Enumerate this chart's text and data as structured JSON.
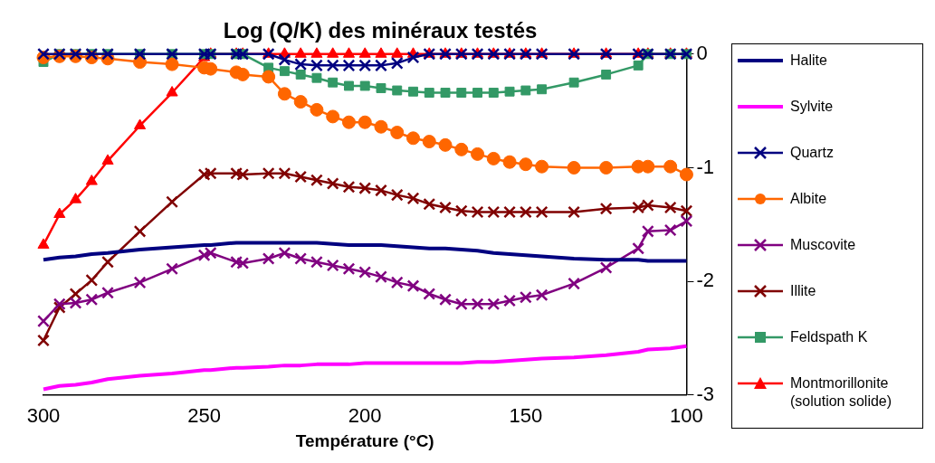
{
  "chart_data": {
    "type": "line",
    "title": "Log (Q/K) des minéraux testés",
    "xlabel": "Température (°C)",
    "x": [
      300,
      295,
      290,
      285,
      280,
      270,
      260,
      250,
      248,
      240,
      238,
      230,
      225,
      220,
      215,
      210,
      205,
      200,
      195,
      190,
      185,
      180,
      175,
      170,
      165,
      160,
      155,
      150,
      145,
      135,
      125,
      115,
      112,
      105,
      100
    ],
    "xlim": [
      300,
      100
    ],
    "xticks": [
      300,
      250,
      200,
      150,
      100
    ],
    "ylim": [
      -3,
      0
    ],
    "yticks": [
      -3,
      -2,
      -1,
      0
    ],
    "grid": false,
    "legend": "right",
    "line_style": "solid",
    "series": [
      {
        "name": "Halite",
        "color": "#000080",
        "marker": "none",
        "values": [
          -1.81,
          -1.79,
          -1.78,
          -1.76,
          -1.75,
          -1.72,
          -1.7,
          -1.68,
          -1.68,
          -1.66,
          -1.66,
          -1.66,
          -1.66,
          -1.66,
          -1.66,
          -1.67,
          -1.68,
          -1.68,
          -1.68,
          -1.69,
          -1.7,
          -1.71,
          -1.71,
          -1.72,
          -1.73,
          -1.75,
          -1.76,
          -1.77,
          -1.78,
          -1.8,
          -1.81,
          -1.81,
          -1.82,
          -1.82,
          -1.82
        ]
      },
      {
        "name": "Sylvite",
        "color": "#ff00ff",
        "marker": "none",
        "values": [
          -2.95,
          -2.92,
          -2.91,
          -2.89,
          -2.86,
          -2.83,
          -2.81,
          -2.78,
          -2.78,
          -2.76,
          -2.76,
          -2.75,
          -2.74,
          -2.74,
          -2.73,
          -2.73,
          -2.73,
          -2.72,
          -2.72,
          -2.72,
          -2.72,
          -2.72,
          -2.72,
          -2.72,
          -2.71,
          -2.71,
          -2.7,
          -2.69,
          -2.68,
          -2.67,
          -2.65,
          -2.62,
          -2.6,
          -2.59,
          -2.57
        ]
      },
      {
        "name": "Quartz",
        "color": "#000080",
        "marker": "cross",
        "values": [
          0,
          0,
          0,
          0,
          0,
          0,
          0,
          0,
          0,
          0,
          0,
          0,
          -0.05,
          -0.09,
          -0.1,
          -0.1,
          -0.1,
          -0.1,
          -0.1,
          -0.08,
          -0.03,
          0,
          0,
          0,
          0,
          0,
          0,
          0,
          0,
          0,
          0,
          0,
          0,
          0,
          0
        ]
      },
      {
        "name": "Albite",
        "color": "#ff6600",
        "marker": "circle",
        "values": [
          -0.03,
          -0.02,
          -0.02,
          -0.03,
          -0.04,
          -0.07,
          -0.09,
          -0.12,
          -0.13,
          -0.16,
          -0.18,
          -0.2,
          -0.35,
          -0.42,
          -0.49,
          -0.55,
          -0.6,
          -0.6,
          -0.64,
          -0.69,
          -0.74,
          -0.77,
          -0.8,
          -0.84,
          -0.88,
          -0.92,
          -0.95,
          -0.97,
          -0.99,
          -1.0,
          -1.0,
          -0.99,
          -0.99,
          -0.99,
          -1.06
        ]
      },
      {
        "name": "Muscovite",
        "color": "#800080",
        "marker": "cross",
        "values": [
          -2.35,
          -2.2,
          -2.19,
          -2.16,
          -2.1,
          -2.01,
          -1.89,
          -1.77,
          -1.75,
          -1.83,
          -1.84,
          -1.8,
          -1.75,
          -1.8,
          -1.83,
          -1.86,
          -1.89,
          -1.92,
          -1.96,
          -2.01,
          -2.04,
          -2.11,
          -2.16,
          -2.2,
          -2.2,
          -2.2,
          -2.17,
          -2.14,
          -2.12,
          -2.02,
          -1.88,
          -1.71,
          -1.56,
          -1.55,
          -1.47
        ]
      },
      {
        "name": "Illite",
        "color": "#800000",
        "marker": "cross",
        "values": [
          -2.52,
          -2.23,
          -2.11,
          -1.99,
          -1.83,
          -1.56,
          -1.3,
          -1.06,
          -1.05,
          -1.05,
          -1.06,
          -1.05,
          -1.05,
          -1.08,
          -1.11,
          -1.14,
          -1.17,
          -1.18,
          -1.2,
          -1.24,
          -1.27,
          -1.32,
          -1.35,
          -1.38,
          -1.39,
          -1.39,
          -1.39,
          -1.39,
          -1.39,
          -1.39,
          -1.36,
          -1.35,
          -1.33,
          -1.35,
          -1.38
        ]
      },
      {
        "name": "Feldspath K",
        "color": "#339966",
        "marker": "square",
        "values": [
          -0.07,
          0,
          0,
          0,
          0,
          0,
          0,
          0,
          0,
          0,
          0,
          -0.12,
          -0.15,
          -0.18,
          -0.21,
          -0.25,
          -0.28,
          -0.28,
          -0.3,
          -0.32,
          -0.33,
          -0.34,
          -0.34,
          -0.34,
          -0.34,
          -0.34,
          -0.33,
          -0.32,
          -0.31,
          -0.25,
          -0.18,
          -0.1,
          0,
          0,
          0
        ]
      },
      {
        "name": "Montmorillonite (solution solide)",
        "color": "#ff0000",
        "marker": "triangle",
        "values": [
          -1.68,
          -1.41,
          -1.28,
          -1.12,
          -0.94,
          -0.63,
          -0.34,
          -0.03,
          0,
          0,
          0,
          0,
          0,
          0,
          0,
          0,
          0,
          0,
          0,
          0,
          0,
          0,
          0,
          0,
          0,
          0,
          0,
          0,
          0,
          0,
          0,
          0,
          0,
          0,
          0
        ]
      }
    ]
  }
}
